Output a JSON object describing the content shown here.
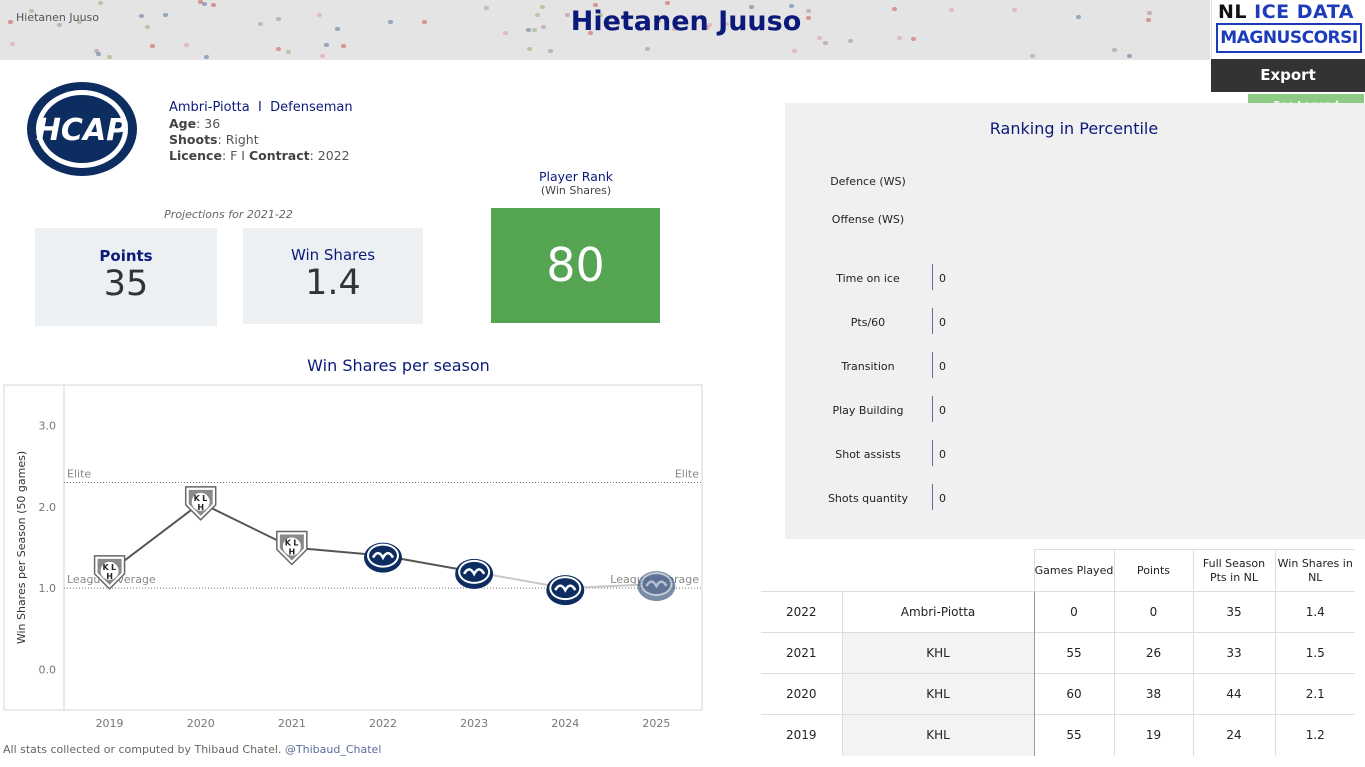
{
  "header": {
    "breadcrumb": "Hietanen Juuso",
    "title": "Hietanen Juuso"
  },
  "brand": {
    "line1a": "NL ",
    "line1b": "ICE DATA",
    "line2": "MAGNUSCORSI"
  },
  "buttons": {
    "export": "Export",
    "legend": "See Legend"
  },
  "team_logo_text": "HCAP",
  "player": {
    "team": "Ambri-Piotta",
    "separator": "I",
    "position": "Defenseman",
    "age_label": "Age",
    "age": "36",
    "shoots_label": "Shoots",
    "shoots": "Right",
    "licence_label": "Licence",
    "licence": "F I",
    "contract_label": "Contract",
    "contract": "2022"
  },
  "projections": {
    "caption": "Projections for 2021-22",
    "points_label": "Points",
    "points": "35",
    "ws_label": "Win Shares",
    "ws": "1.4"
  },
  "rank": {
    "label": "Player Rank",
    "sublabel": "(Win Shares)",
    "value": "80"
  },
  "chart_title": "Win Shares per season",
  "chart_data": {
    "type": "line",
    "title": "Win Shares per season",
    "xlabel": "",
    "ylabel": "Win Shares per Season (50 games)",
    "x": [
      "2019",
      "2020",
      "2021",
      "2022",
      "2023",
      "2024",
      "2025"
    ],
    "series": [
      {
        "values": [
          1.2,
          2.05,
          1.5,
          1.4,
          1.2,
          1.0,
          1.05
        ],
        "markers": [
          "khl",
          "khl",
          "khl",
          "hcap",
          "hcap",
          "hcap",
          "hcap-faded"
        ]
      }
    ],
    "yticks": [
      "0.0",
      "1.0",
      "2.0",
      "3.0"
    ],
    "ylim": [
      -0.5,
      3.5
    ],
    "reference_lines": [
      {
        "label": "Elite",
        "value": 2.3
      },
      {
        "label": "League average",
        "value": 1.0
      }
    ],
    "grid": false,
    "colors": {
      "line": "#555555",
      "line_faded": "#c8c8c8",
      "khl": "#8a8a8a",
      "hcap": "#0d2d60"
    }
  },
  "footer": {
    "text": "All stats collected or computed by Thibaud Chatel. ",
    "handle": "@Thibaud_Chatel"
  },
  "ranking": {
    "title": "Ranking in Percentile",
    "top": [
      {
        "label": "Defence (WS)"
      },
      {
        "label": "Offense (WS)"
      }
    ],
    "rows": [
      {
        "label": "Time on ice",
        "value": "0"
      },
      {
        "label": "Pts/60",
        "value": "0"
      },
      {
        "label": "Transition",
        "value": "0"
      },
      {
        "label": "Play Building",
        "value": "0"
      },
      {
        "label": "Shot assists",
        "value": "0"
      },
      {
        "label": "Shots quantity",
        "value": "0"
      }
    ]
  },
  "stats_table": {
    "headers": [
      "Games Played",
      "Points",
      "Full Season Pts in NL",
      "Win Shares in NL"
    ],
    "rows": [
      {
        "year": "2022",
        "team": "Ambri-Piotta",
        "gp": "0",
        "pts": "0",
        "fspts": "35",
        "ws": "1.4"
      },
      {
        "year": "2021",
        "team": "KHL",
        "gp": "55",
        "pts": "26",
        "fspts": "33",
        "ws": "1.5"
      },
      {
        "year": "2020",
        "team": "KHL",
        "gp": "60",
        "pts": "38",
        "fspts": "44",
        "ws": "2.1"
      },
      {
        "year": "2019",
        "team": "KHL",
        "gp": "55",
        "pts": "19",
        "fspts": "24",
        "ws": "1.2"
      }
    ]
  }
}
